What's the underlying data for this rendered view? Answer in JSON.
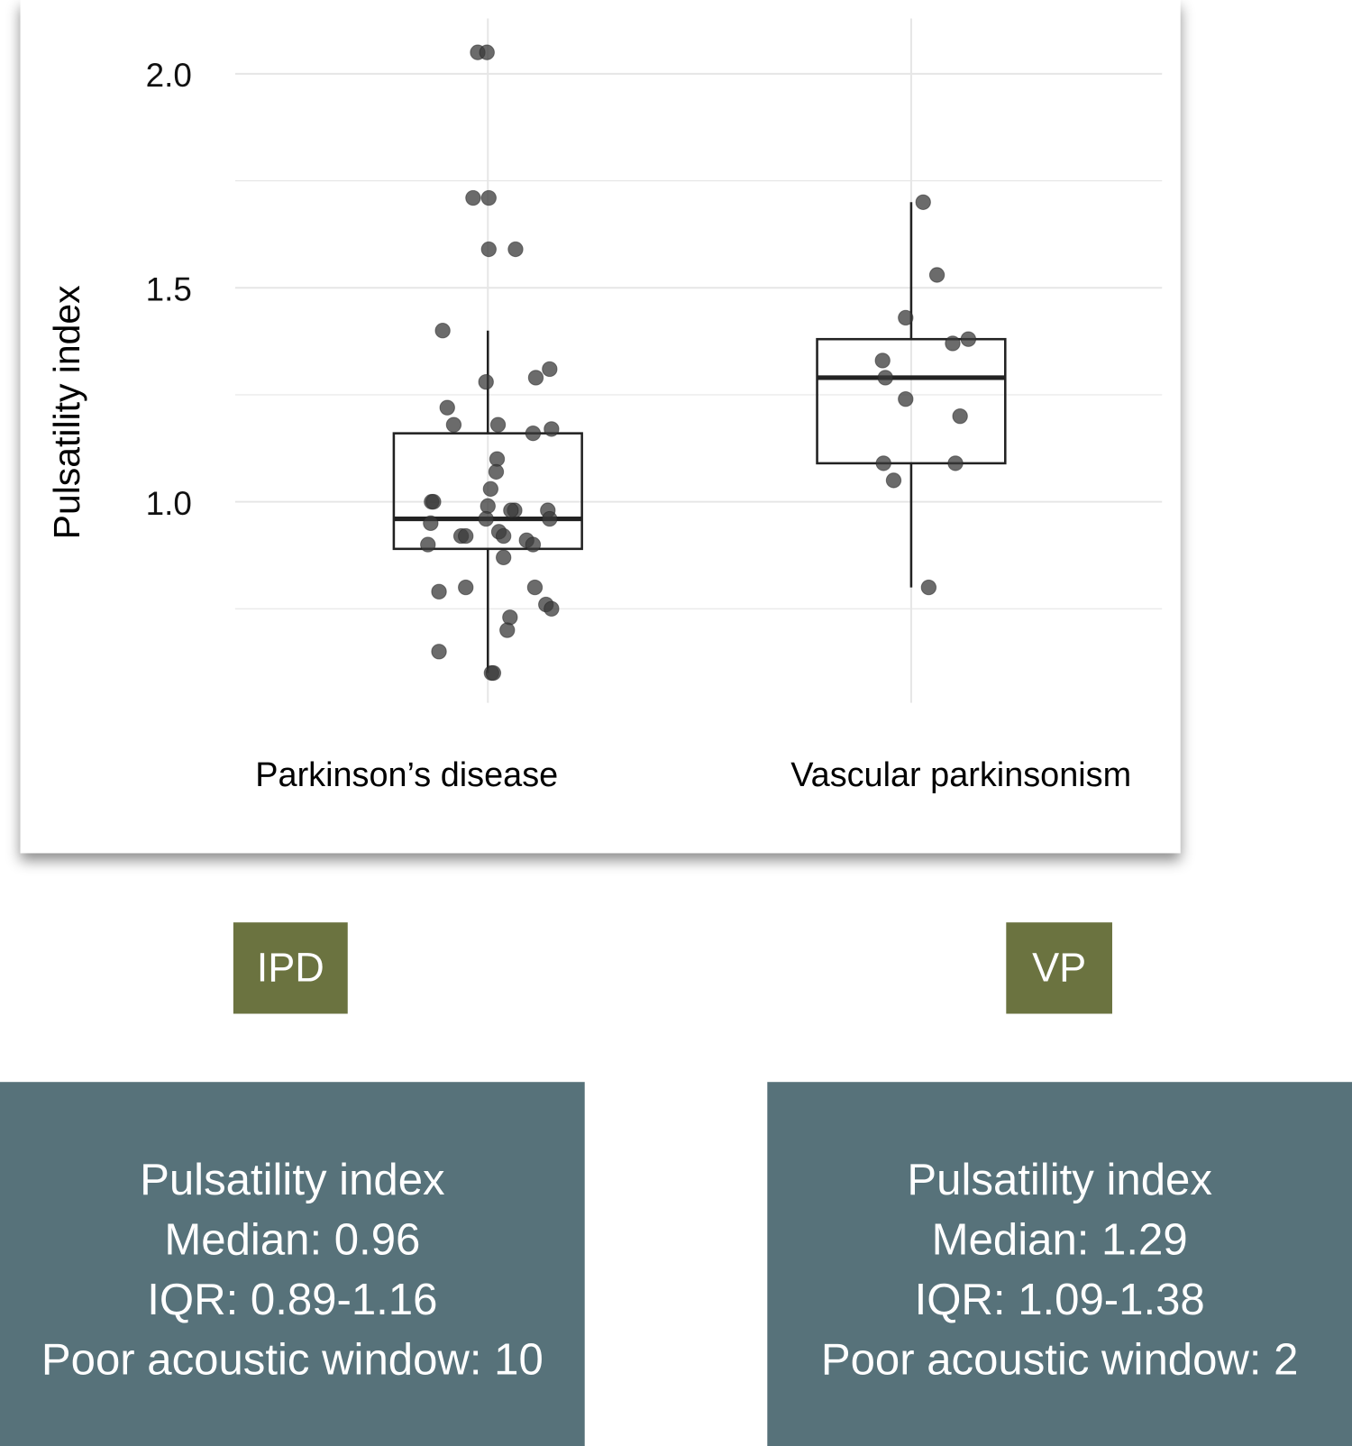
{
  "chart_data": {
    "type": "box",
    "ylabel": "Pulsatility index",
    "xlabel": "",
    "yticks": [
      1.0,
      1.5,
      2.0
    ],
    "ylim": [
      0.55,
      2.1
    ],
    "grid": true,
    "categories": [
      "Parkinson’s disease",
      "Vascular parkinsonism"
    ],
    "colors": {
      "box": "#222222",
      "point": "#3a3a3a",
      "grid": "#e6e6e6"
    },
    "series": [
      {
        "box": {
          "median": 0.96,
          "q1": 0.89,
          "q3": 1.16,
          "whisker_low": 0.6,
          "whisker_high": 1.4
        },
        "points": [
          2.05,
          2.05,
          1.71,
          1.71,
          1.59,
          1.59,
          1.4,
          1.28,
          1.29,
          1.31,
          1.22,
          1.18,
          1.18,
          1.16,
          1.17,
          1.1,
          1.07,
          1.03,
          1.0,
          1.0,
          0.99,
          0.98,
          0.98,
          0.98,
          0.96,
          0.95,
          0.96,
          0.92,
          0.92,
          0.93,
          0.91,
          0.92,
          0.9,
          0.9,
          0.87,
          0.79,
          0.8,
          0.8,
          0.76,
          0.75,
          0.73,
          0.7,
          0.65,
          0.6,
          0.6
        ]
      },
      {
        "box": {
          "median": 1.29,
          "q1": 1.09,
          "q3": 1.38,
          "whisker_low": 0.8,
          "whisker_high": 1.7
        },
        "points": [
          1.7,
          1.53,
          1.43,
          1.37,
          1.38,
          1.33,
          1.29,
          1.24,
          1.2,
          1.09,
          1.09,
          1.05,
          0.8
        ]
      }
    ]
  },
  "labels": {
    "groups": [
      {
        "tag": "IPD",
        "title": "Pulsatility index",
        "median": "Median: 0.96",
        "iqr": "IQR: 0.89-1.16",
        "poor": "Poor acoustic window: 10"
      },
      {
        "tag": "VP",
        "title": "Pulsatility index",
        "median": "Median: 1.29",
        "iqr": "IQR: 1.09-1.38",
        "poor": "Poor acoustic window: 2"
      }
    ],
    "colors": {
      "tag": "#6b7340",
      "stat": "#57727a"
    }
  }
}
